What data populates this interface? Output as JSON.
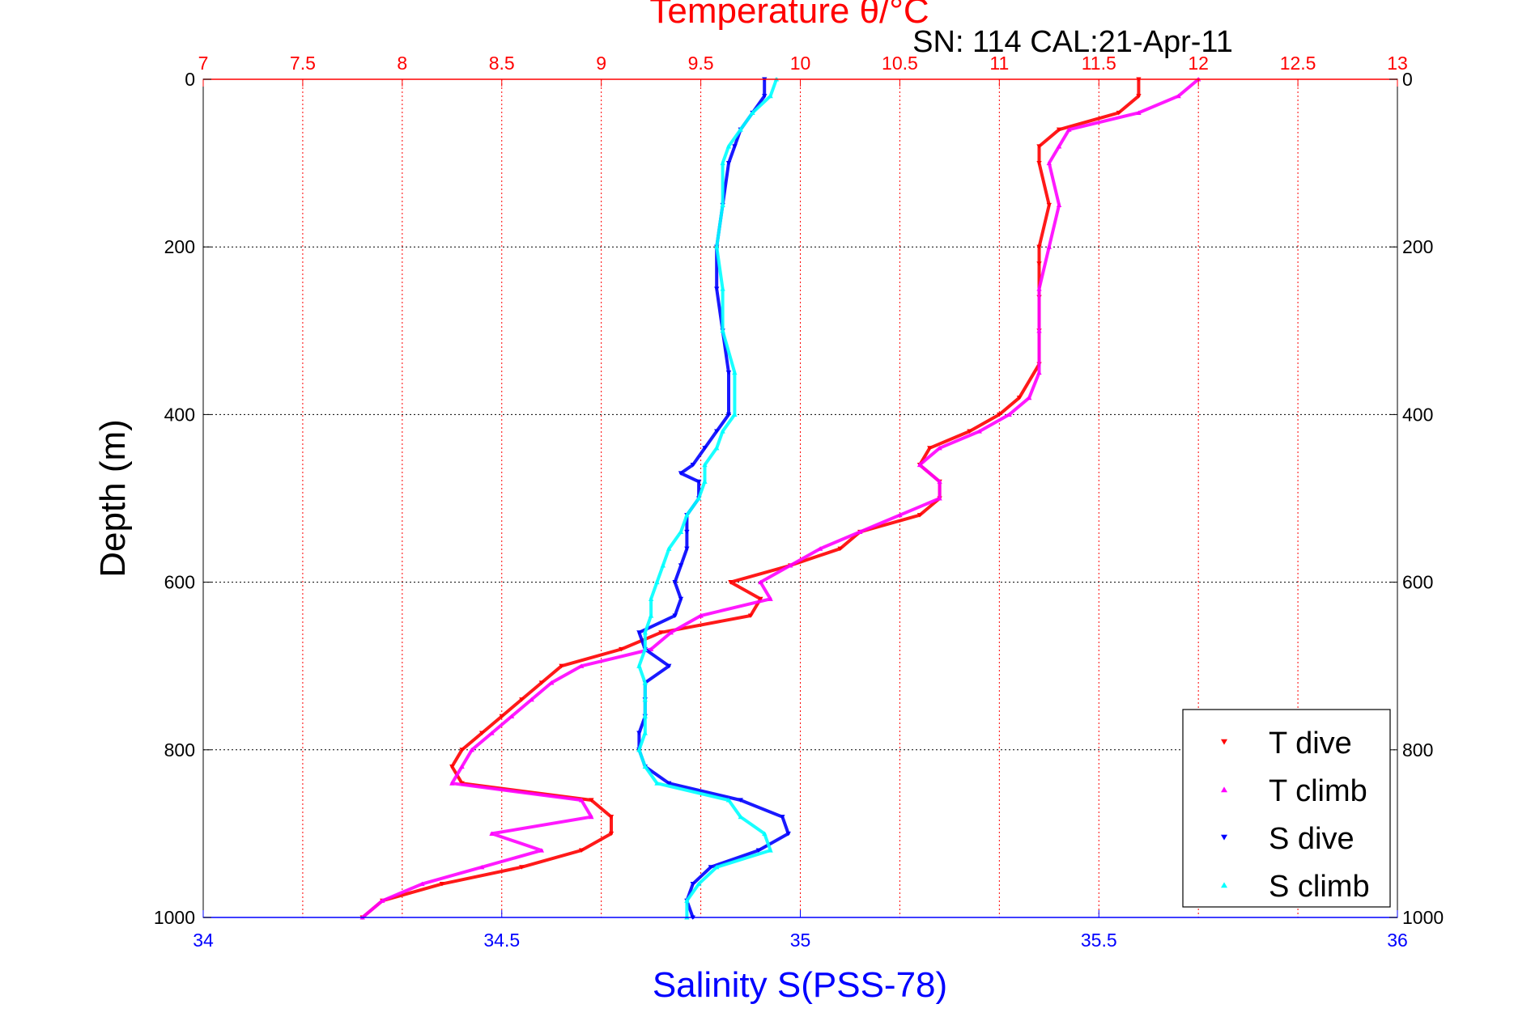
{
  "chart_data": {
    "type": "scatter",
    "title": "Temperature θ/°C",
    "subtitle": "SN: 114  CAL:21-Apr-11",
    "ylabel": "Depth (m)",
    "xlabel": "Salinity S(PSS-78)",
    "ylim": [
      0,
      1000
    ],
    "y_reversed": true,
    "y_ticks": [
      "0",
      "200",
      "400",
      "600",
      "800",
      "1000"
    ],
    "x_top": {
      "label": "Temperature θ/°C",
      "range": [
        7,
        13
      ],
      "ticks": [
        "7",
        "7.5",
        "8",
        "8.5",
        "9",
        "9.5",
        "10",
        "10.5",
        "11",
        "11.5",
        "12",
        "12.5",
        "13"
      ],
      "color": "#ff0000"
    },
    "x_bottom": {
      "label": "Salinity S(PSS-78)",
      "range": [
        34,
        36
      ],
      "ticks": [
        "34",
        "34.5",
        "35",
        "35.5",
        "36"
      ],
      "color": "#0000ff"
    },
    "grid": true,
    "legend_position": "bottom-right",
    "series": [
      {
        "name": "T dive",
        "axis": "top",
        "color": "#ff0000",
        "marker": "triangle-down",
        "depth": [
          0,
          20,
          40,
          60,
          80,
          100,
          150,
          200,
          220,
          260,
          300,
          340,
          380,
          400,
          420,
          440,
          460,
          480,
          500,
          520,
          540,
          560,
          580,
          600,
          620,
          640,
          660,
          680,
          700,
          720,
          740,
          760,
          780,
          800,
          820,
          840,
          860,
          880,
          900,
          920,
          940,
          960,
          980,
          1000
        ],
        "temp": [
          11.7,
          11.7,
          11.6,
          11.3,
          11.2,
          11.2,
          11.25,
          11.2,
          11.2,
          11.2,
          11.2,
          11.2,
          11.1,
          11.0,
          10.85,
          10.65,
          10.6,
          10.7,
          10.7,
          10.6,
          10.3,
          10.2,
          9.95,
          9.65,
          9.8,
          9.75,
          9.3,
          9.1,
          8.8,
          8.7,
          8.6,
          8.5,
          8.4,
          8.3,
          8.25,
          8.3,
          8.95,
          9.05,
          9.05,
          8.9,
          8.6,
          8.2,
          7.9,
          7.8
        ]
      },
      {
        "name": "T climb",
        "axis": "top",
        "color": "#ff00ff",
        "marker": "triangle-up",
        "depth": [
          0,
          20,
          40,
          60,
          80,
          100,
          150,
          200,
          250,
          300,
          350,
          380,
          400,
          420,
          440,
          460,
          480,
          500,
          520,
          540,
          560,
          580,
          600,
          620,
          640,
          660,
          680,
          700,
          720,
          740,
          760,
          780,
          800,
          820,
          840,
          860,
          880,
          900,
          920,
          940,
          960,
          980,
          1000
        ],
        "temp": [
          12.0,
          11.9,
          11.7,
          11.35,
          11.3,
          11.25,
          11.3,
          11.25,
          11.2,
          11.2,
          11.2,
          11.15,
          11.05,
          10.9,
          10.7,
          10.6,
          10.7,
          10.7,
          10.5,
          10.3,
          10.1,
          9.95,
          9.8,
          9.85,
          9.5,
          9.35,
          9.25,
          8.9,
          8.75,
          8.65,
          8.55,
          8.45,
          8.35,
          8.3,
          8.25,
          8.9,
          8.95,
          8.45,
          8.7,
          8.4,
          8.1,
          7.9,
          7.8
        ]
      },
      {
        "name": "S dive",
        "axis": "bottom",
        "color": "#0000ff",
        "marker": "triangle-down",
        "depth": [
          0,
          20,
          40,
          60,
          80,
          100,
          150,
          200,
          250,
          300,
          350,
          400,
          420,
          440,
          460,
          470,
          480,
          500,
          520,
          540,
          560,
          580,
          600,
          620,
          640,
          660,
          680,
          700,
          720,
          740,
          760,
          780,
          800,
          820,
          840,
          860,
          880,
          900,
          920,
          940,
          960,
          980,
          1000
        ],
        "sal": [
          34.94,
          34.94,
          34.92,
          34.9,
          34.89,
          34.88,
          34.87,
          34.86,
          34.86,
          34.87,
          34.88,
          34.88,
          34.86,
          34.84,
          34.82,
          34.8,
          34.83,
          34.83,
          34.81,
          34.81,
          34.81,
          34.8,
          34.79,
          34.8,
          34.79,
          34.73,
          34.74,
          34.78,
          34.74,
          34.74,
          34.74,
          34.73,
          34.73,
          34.74,
          34.78,
          34.9,
          34.97,
          34.98,
          34.93,
          34.85,
          34.82,
          34.81,
          34.82
        ]
      },
      {
        "name": "S climb",
        "axis": "bottom",
        "color": "#00ffff",
        "marker": "triangle-up",
        "depth": [
          0,
          20,
          40,
          60,
          80,
          100,
          150,
          200,
          250,
          300,
          350,
          400,
          420,
          440,
          460,
          480,
          500,
          520,
          540,
          560,
          580,
          600,
          620,
          640,
          660,
          680,
          700,
          720,
          740,
          760,
          780,
          800,
          820,
          840,
          860,
          880,
          900,
          920,
          940,
          960,
          980,
          1000
        ],
        "sal": [
          34.96,
          34.95,
          34.92,
          34.9,
          34.88,
          34.87,
          34.87,
          34.86,
          34.87,
          34.87,
          34.89,
          34.89,
          34.87,
          34.86,
          34.84,
          34.84,
          34.83,
          34.81,
          34.8,
          34.78,
          34.77,
          34.76,
          34.75,
          34.75,
          34.74,
          34.74,
          34.73,
          34.74,
          34.74,
          34.74,
          34.74,
          34.73,
          34.74,
          34.76,
          34.88,
          34.9,
          34.94,
          34.95,
          34.86,
          34.83,
          34.81,
          34.81
        ]
      }
    ]
  }
}
